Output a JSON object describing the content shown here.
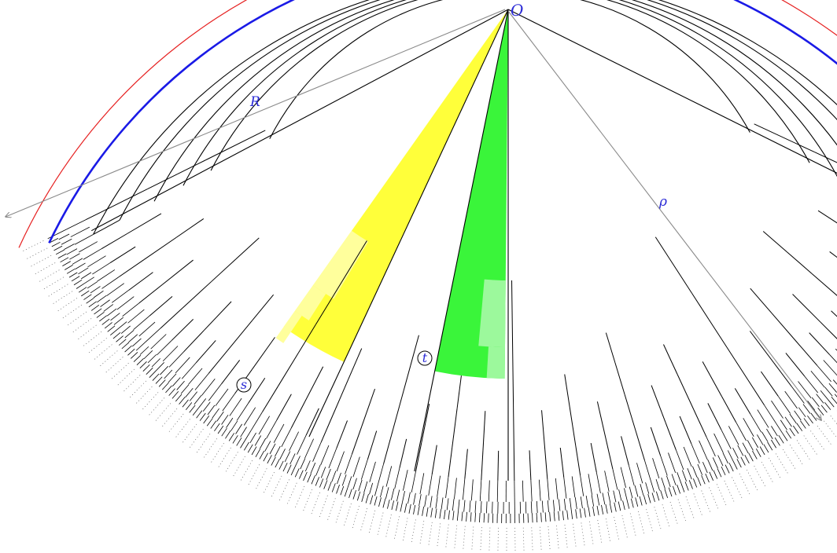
{
  "labels": {
    "origin": "O",
    "outer_radius": "R",
    "rho": "ρ",
    "node_s": "s",
    "node_t": "t"
  },
  "diagram": {
    "levels": 9,
    "sector_left_deg": 246,
    "sector_right_deg": 308,
    "yellow_wedge_deg": [
      221,
      232
    ],
    "green_wedge_deg": [
      184.5,
      200
    ],
    "radial_line_deg": [
      198,
      224
    ],
    "colors": {
      "wedge_yellow": "#ffff3a",
      "wedge_yellow_light": "#ffff9c",
      "wedge_green": "#3af53a",
      "wedge_green_light": "#9cf99c",
      "line": "#000000",
      "arc_blue": "#1a1ae6",
      "arc_red": "#e62020",
      "arrow_gray": "#8a8a8a",
      "label_blue": "#2b2bd6"
    }
  }
}
